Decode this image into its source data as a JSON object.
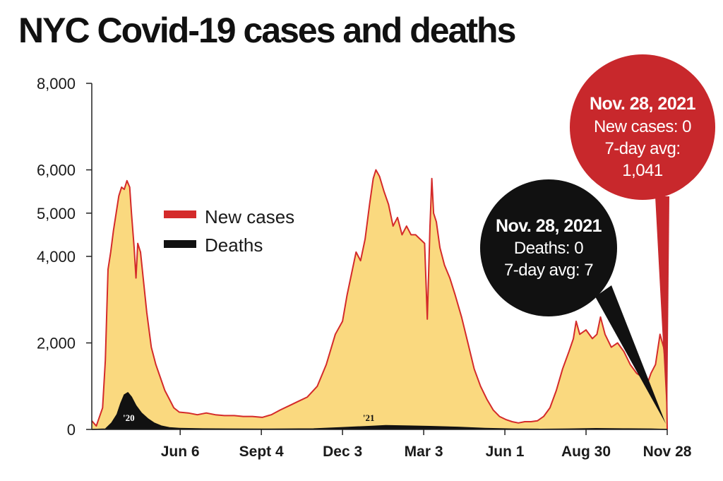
{
  "title": "NYC Covid-19 cases and deaths",
  "chart_data": {
    "type": "area",
    "title": "NYC Covid-19 cases and deaths",
    "xlabel": "",
    "ylabel": "",
    "ylim": [
      0,
      8000
    ],
    "ytick_labels": [
      "0",
      "2,000",
      "4,000",
      "5,000",
      "6,000",
      "8,000"
    ],
    "yticks": [
      0,
      2000,
      4000,
      5000,
      6000,
      8000
    ],
    "xtick_labels": [
      "Jun 6",
      "Sept 4",
      "Dec 3",
      "Mar 3",
      "Jun 1",
      "Aug 30",
      "Nov 28"
    ],
    "xtick_dates": [
      "2020-06-06",
      "2020-09-04",
      "2020-12-03",
      "2021-03-03",
      "2021-06-01",
      "2021-08-30",
      "2021-11-28"
    ],
    "xlim": [
      "2020-02-29",
      "2021-11-28"
    ],
    "grid": false,
    "legend_position": "upper-left",
    "year_labels": [
      {
        "text": "'20",
        "x": "2020-04-10"
      },
      {
        "text": "'21",
        "x": "2021-01-01"
      }
    ],
    "series": [
      {
        "name": "New cases",
        "color": "#d42a2a",
        "fill": "#fad97f",
        "points": [
          [
            "2020-02-29",
            200
          ],
          [
            "2020-03-05",
            80
          ],
          [
            "2020-03-12",
            500
          ],
          [
            "2020-03-15",
            1600
          ],
          [
            "2020-03-18",
            3700
          ],
          [
            "2020-03-21",
            4100
          ],
          [
            "2020-03-24",
            4600
          ],
          [
            "2020-03-27",
            5000
          ],
          [
            "2020-03-30",
            5400
          ],
          [
            "2020-04-02",
            5600
          ],
          [
            "2020-04-05",
            5550
          ],
          [
            "2020-04-08",
            5750
          ],
          [
            "2020-04-11",
            5600
          ],
          [
            "2020-04-13",
            5000
          ],
          [
            "2020-04-16",
            4200
          ],
          [
            "2020-04-18",
            3500
          ],
          [
            "2020-04-20",
            4300
          ],
          [
            "2020-04-23",
            4100
          ],
          [
            "2020-04-26",
            3500
          ],
          [
            "2020-04-30",
            2700
          ],
          [
            "2020-05-05",
            1900
          ],
          [
            "2020-05-10",
            1500
          ],
          [
            "2020-05-15",
            1200
          ],
          [
            "2020-05-20",
            900
          ],
          [
            "2020-05-25",
            700
          ],
          [
            "2020-05-30",
            500
          ],
          [
            "2020-06-05",
            400
          ],
          [
            "2020-06-15",
            380
          ],
          [
            "2020-06-25",
            340
          ],
          [
            "2020-07-05",
            380
          ],
          [
            "2020-07-15",
            340
          ],
          [
            "2020-07-25",
            320
          ],
          [
            "2020-08-05",
            320
          ],
          [
            "2020-08-15",
            300
          ],
          [
            "2020-08-25",
            300
          ],
          [
            "2020-09-05",
            280
          ],
          [
            "2020-09-15",
            340
          ],
          [
            "2020-09-25",
            450
          ],
          [
            "2020-10-05",
            550
          ],
          [
            "2020-10-15",
            650
          ],
          [
            "2020-10-25",
            750
          ],
          [
            "2020-11-05",
            1000
          ],
          [
            "2020-11-15",
            1500
          ],
          [
            "2020-11-25",
            2200
          ],
          [
            "2020-12-03",
            2500
          ],
          [
            "2020-12-08",
            3100
          ],
          [
            "2020-12-13",
            3600
          ],
          [
            "2020-12-18",
            4100
          ],
          [
            "2020-12-23",
            3900
          ],
          [
            "2020-12-28",
            4400
          ],
          [
            "2021-01-02",
            5200
          ],
          [
            "2021-01-06",
            5800
          ],
          [
            "2021-01-09",
            6000
          ],
          [
            "2021-01-13",
            5850
          ],
          [
            "2021-01-18",
            5500
          ],
          [
            "2021-01-23",
            5200
          ],
          [
            "2021-01-28",
            4700
          ],
          [
            "2021-02-02",
            4900
          ],
          [
            "2021-02-07",
            4500
          ],
          [
            "2021-02-12",
            4700
          ],
          [
            "2021-02-17",
            4500
          ],
          [
            "2021-02-22",
            4500
          ],
          [
            "2021-02-27",
            4400
          ],
          [
            "2021-03-04",
            4300
          ],
          [
            "2021-03-07",
            2550
          ],
          [
            "2021-03-10",
            4700
          ],
          [
            "2021-03-12",
            5800
          ],
          [
            "2021-03-14",
            5000
          ],
          [
            "2021-03-17",
            4800
          ],
          [
            "2021-03-21",
            4200
          ],
          [
            "2021-03-26",
            3800
          ],
          [
            "2021-04-01",
            3500
          ],
          [
            "2021-04-07",
            3100
          ],
          [
            "2021-04-14",
            2600
          ],
          [
            "2021-04-21",
            2000
          ],
          [
            "2021-04-28",
            1400
          ],
          [
            "2021-05-05",
            1000
          ],
          [
            "2021-05-12",
            700
          ],
          [
            "2021-05-19",
            450
          ],
          [
            "2021-05-26",
            300
          ],
          [
            "2021-06-02",
            230
          ],
          [
            "2021-06-09",
            180
          ],
          [
            "2021-06-16",
            150
          ],
          [
            "2021-06-23",
            180
          ],
          [
            "2021-06-30",
            180
          ],
          [
            "2021-07-07",
            200
          ],
          [
            "2021-07-14",
            300
          ],
          [
            "2021-07-21",
            500
          ],
          [
            "2021-07-28",
            900
          ],
          [
            "2021-08-04",
            1400
          ],
          [
            "2021-08-11",
            1800
          ],
          [
            "2021-08-16",
            2100
          ],
          [
            "2021-08-19",
            2500
          ],
          [
            "2021-08-23",
            2200
          ],
          [
            "2021-08-30",
            2300
          ],
          [
            "2021-09-06",
            2100
          ],
          [
            "2021-09-11",
            2200
          ],
          [
            "2021-09-15",
            2600
          ],
          [
            "2021-09-20",
            2200
          ],
          [
            "2021-09-27",
            1900
          ],
          [
            "2021-10-04",
            2000
          ],
          [
            "2021-10-11",
            1800
          ],
          [
            "2021-10-18",
            1500
          ],
          [
            "2021-10-25",
            1300
          ],
          [
            "2021-11-01",
            1200
          ],
          [
            "2021-11-05",
            1000
          ],
          [
            "2021-11-10",
            1300
          ],
          [
            "2021-11-15",
            1500
          ],
          [
            "2021-11-20",
            2200
          ],
          [
            "2021-11-24",
            1900
          ],
          [
            "2021-11-27",
            1400
          ],
          [
            "2021-11-28",
            0
          ]
        ]
      },
      {
        "name": "Deaths",
        "color": "#111111",
        "fill": "#111111",
        "points": [
          [
            "2020-02-29",
            0
          ],
          [
            "2020-03-15",
            10
          ],
          [
            "2020-03-22",
            150
          ],
          [
            "2020-03-28",
            350
          ],
          [
            "2020-04-01",
            600
          ],
          [
            "2020-04-05",
            800
          ],
          [
            "2020-04-09",
            850
          ],
          [
            "2020-04-13",
            750
          ],
          [
            "2020-04-18",
            550
          ],
          [
            "2020-04-24",
            380
          ],
          [
            "2020-05-01",
            250
          ],
          [
            "2020-05-08",
            150
          ],
          [
            "2020-05-16",
            80
          ],
          [
            "2020-05-25",
            40
          ],
          [
            "2020-06-05",
            25
          ],
          [
            "2020-07-01",
            15
          ],
          [
            "2020-08-01",
            10
          ],
          [
            "2020-09-01",
            8
          ],
          [
            "2020-10-01",
            10
          ],
          [
            "2020-11-01",
            15
          ],
          [
            "2020-12-01",
            40
          ],
          [
            "2021-01-01",
            70
          ],
          [
            "2021-01-20",
            90
          ],
          [
            "2021-02-15",
            80
          ],
          [
            "2021-03-10",
            70
          ],
          [
            "2021-04-10",
            50
          ],
          [
            "2021-05-10",
            25
          ],
          [
            "2021-06-10",
            10
          ],
          [
            "2021-07-10",
            5
          ],
          [
            "2021-08-10",
            10
          ],
          [
            "2021-09-10",
            20
          ],
          [
            "2021-10-10",
            15
          ],
          [
            "2021-11-10",
            10
          ],
          [
            "2021-11-28",
            0
          ]
        ]
      }
    ],
    "annotations": [
      {
        "series": "New cases",
        "date_label": "Nov. 28, 2021",
        "lines": [
          "New cases: 0",
          "7-day avg:",
          "1,041"
        ],
        "color": "#c8282c"
      },
      {
        "series": "Deaths",
        "date_label": "Nov. 28, 2021",
        "lines": [
          "Deaths: 0",
          "7-day avg: 7"
        ],
        "color": "#111111"
      }
    ]
  }
}
